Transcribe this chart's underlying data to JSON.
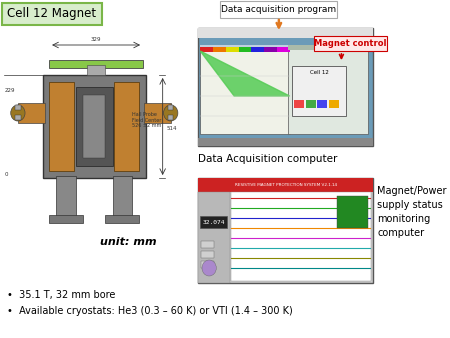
{
  "title_box_text": "Cell 12 Magnet",
  "title_box_color": "#d8edcc",
  "title_box_border": "#7ab648",
  "unit_text": "unit: mm",
  "bullet1": "35.1 T, 32 mm bore",
  "bullet2": "Available cryostats: He3 (0.3 – 60 K) or VTI (1.4 – 300 K)",
  "data_acq_label_box": "Data acquisition program",
  "data_acq_caption": "Data Acquisition computer",
  "magnet_power_text": "Magnet/Power\nsupply status\nmonitoring\ncomputer",
  "magnet_control_text": "Magnet control",
  "magnet_control_color": "#cc0000",
  "bg_color": "#ffffff",
  "arrow_color": "#e07820",
  "dac_bg_color": "#6b9bb8",
  "dac_screen_color": "#c8e8b0",
  "monitor_bg_color": "#cccccc"
}
